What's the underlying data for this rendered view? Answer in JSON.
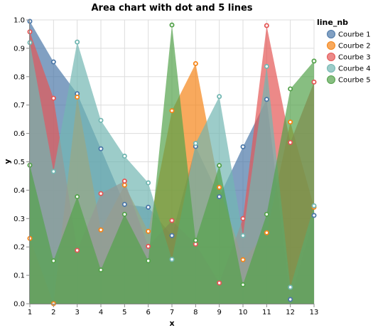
{
  "chart_data": {
    "type": "area",
    "title": "Area chart with dot and 5 lines",
    "xlabel": "x",
    "ylabel": "y",
    "x": [
      1,
      2,
      3,
      4,
      5,
      6,
      7,
      8,
      9,
      10,
      11,
      12,
      13
    ],
    "xlim": [
      1,
      13
    ],
    "ylim": [
      0,
      1
    ],
    "y_ticks": [
      "0.0",
      "0.1",
      "0.2",
      "0.3",
      "0.4",
      "0.5",
      "0.6",
      "0.7",
      "0.8",
      "0.9",
      "1.0"
    ],
    "x_ticks": [
      "1",
      "2",
      "3",
      "4",
      "5",
      "6",
      "7",
      "8",
      "9",
      "10",
      "11",
      "12",
      "13"
    ],
    "grid": true,
    "legend": {
      "title": "line_nb",
      "position": "right"
    },
    "series": [
      {
        "name": "Courbe 1",
        "color": "#4c78a8",
        "values": [
          0.995,
          0.852,
          0.74,
          0.546,
          0.35,
          0.34,
          0.24,
          0.554,
          0.377,
          0.553,
          0.72,
          0.015,
          0.311
        ]
      },
      {
        "name": "Courbe 2",
        "color": "#f58518",
        "values": [
          0.23,
          0.0,
          0.728,
          0.26,
          0.418,
          0.255,
          0.68,
          0.846,
          0.41,
          0.155,
          0.25,
          0.64,
          0.34
        ]
      },
      {
        "name": "Courbe 3",
        "color": "#e45756",
        "values": [
          0.958,
          0.724,
          0.188,
          0.388,
          0.432,
          0.202,
          0.293,
          0.21,
          0.073,
          0.3,
          0.98,
          0.568,
          0.781
        ]
      },
      {
        "name": "Courbe 4",
        "color": "#72b7b2",
        "values": [
          0.92,
          0.466,
          0.922,
          0.646,
          0.52,
          0.426,
          0.156,
          0.565,
          0.73,
          0.24,
          0.836,
          0.058,
          0.345
        ]
      },
      {
        "name": "Courbe 5",
        "color": "#54a24b",
        "values": [
          0.488,
          0.151,
          0.377,
          0.119,
          0.315,
          0.151,
          0.982,
          0.223,
          0.487,
          0.067,
          0.315,
          0.757,
          0.855
        ]
      }
    ]
  }
}
